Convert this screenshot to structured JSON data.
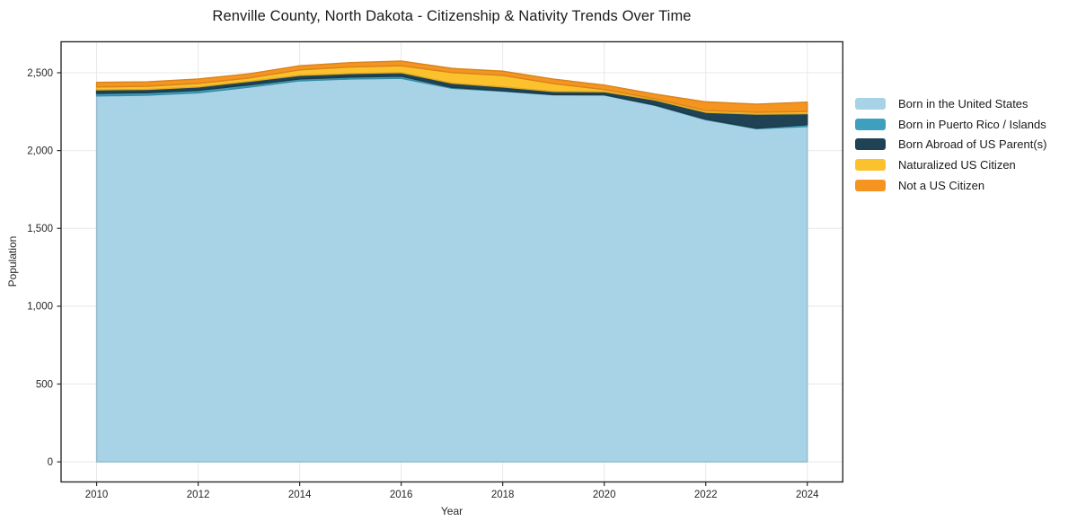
{
  "chart_data": {
    "type": "area",
    "stacked": true,
    "title": "Renville County, North Dakota - Citizenship & Nativity Trends Over Time",
    "xlabel": "Year",
    "ylabel": "Population",
    "x": [
      2010,
      2011,
      2012,
      2013,
      2014,
      2015,
      2016,
      2017,
      2018,
      2019,
      2020,
      2021,
      2022,
      2023,
      2024
    ],
    "series": [
      {
        "name": "Born in the United States",
        "color": "#a8d3e6",
        "values": [
          2351,
          2356,
          2371,
          2407,
          2448,
          2460,
          2464,
          2400,
          2381,
          2358,
          2357,
          2290,
          2198,
          2140,
          2155
        ]
      },
      {
        "name": "Born in Puerto Rico / Islands",
        "color": "#3ea0bd",
        "values": [
          16,
          16,
          16,
          15,
          12,
          12,
          14,
          6,
          3,
          2,
          2,
          3,
          4,
          4,
          12
        ]
      },
      {
        "name": "Born Abroad of US Parent(s)",
        "color": "#1f4254",
        "values": [
          23,
          21,
          22,
          23,
          23,
          23,
          23,
          27,
          25,
          20,
          19,
          32,
          44,
          90,
          70
        ]
      },
      {
        "name": "Naturalized US Citizen",
        "color": "#fcc22d",
        "values": [
          19,
          20,
          22,
          21,
          35,
          42,
          44,
          68,
          74,
          50,
          14,
          8,
          12,
          12,
          14
        ]
      },
      {
        "name": "Not a US Citizen",
        "color": "#f59520",
        "values": [
          29,
          29,
          29,
          27,
          27,
          28,
          30,
          27,
          27,
          29,
          29,
          30,
          55,
          52,
          60
        ]
      }
    ],
    "xticks": {
      "values": [
        2010,
        2012,
        2014,
        2016,
        2018,
        2020,
        2022,
        2024
      ],
      "labels": [
        "2010",
        "2012",
        "2014",
        "2016",
        "2018",
        "2020",
        "2022",
        "2024"
      ]
    },
    "yticks": {
      "values": [
        0,
        500,
        1000,
        1500,
        2000,
        2500
      ],
      "labels": [
        "0",
        "500",
        "1,000",
        "1,500",
        "2,000",
        "2,500"
      ]
    },
    "xlim": [
      2009.3,
      2024.7
    ],
    "ylim": [
      -129,
      2699
    ],
    "grid": true,
    "legend_position": "right",
    "colors": {
      "background": "#ffffff",
      "gridline": "#e8e8e8",
      "spine": "#2b2b2b",
      "text": "#262626"
    }
  }
}
